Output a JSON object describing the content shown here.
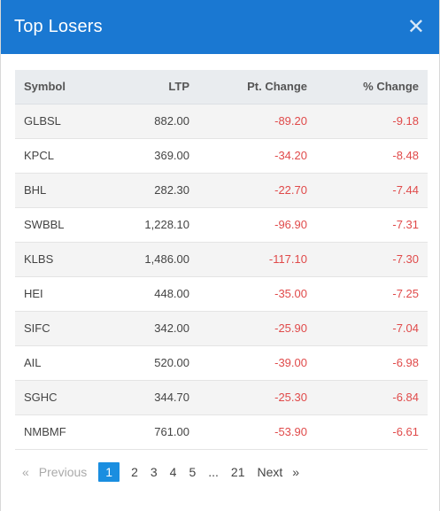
{
  "modal": {
    "title": "Top Losers",
    "close_glyph": "✕"
  },
  "table": {
    "headers": {
      "symbol": "Symbol",
      "ltp": "LTP",
      "pt_change": "Pt. Change",
      "pct_change": "% Change"
    },
    "rows": [
      {
        "symbol": "GLBSL",
        "ltp": "882.00",
        "pt_change": "-89.20",
        "pct_change": "-9.18"
      },
      {
        "symbol": "KPCL",
        "ltp": "369.00",
        "pt_change": "-34.20",
        "pct_change": "-8.48"
      },
      {
        "symbol": "BHL",
        "ltp": "282.30",
        "pt_change": "-22.70",
        "pct_change": "-7.44"
      },
      {
        "symbol": "SWBBL",
        "ltp": "1,228.10",
        "pt_change": "-96.90",
        "pct_change": "-7.31"
      },
      {
        "symbol": "KLBS",
        "ltp": "1,486.00",
        "pt_change": "-117.10",
        "pct_change": "-7.30"
      },
      {
        "symbol": "HEI",
        "ltp": "448.00",
        "pt_change": "-35.00",
        "pct_change": "-7.25"
      },
      {
        "symbol": "SIFC",
        "ltp": "342.00",
        "pt_change": "-25.90",
        "pct_change": "-7.04"
      },
      {
        "symbol": "AIL",
        "ltp": "520.00",
        "pt_change": "-39.00",
        "pct_change": "-6.98"
      },
      {
        "symbol": "SGHC",
        "ltp": "344.70",
        "pt_change": "-25.30",
        "pct_change": "-6.84"
      },
      {
        "symbol": "NMBMF",
        "ltp": "761.00",
        "pt_change": "-53.90",
        "pct_change": "-6.61"
      }
    ]
  },
  "pagination": {
    "prev_arrow": "«",
    "prev_label": "Previous",
    "pages": [
      "1",
      "2",
      "3",
      "4",
      "5"
    ],
    "active_page": "1",
    "ellipsis": "...",
    "last_page": "21",
    "next_label": "Next",
    "next_arrow": "»"
  },
  "colors": {
    "header_bg": "#1a78d2",
    "negative": "#e04a4a",
    "active_page": "#1a8ee0"
  }
}
